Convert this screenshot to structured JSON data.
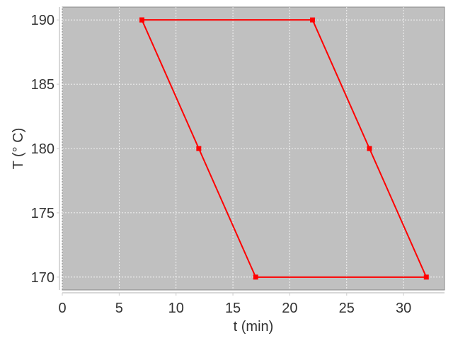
{
  "chart_data": {
    "type": "line",
    "title": "",
    "xlabel": "t (min)",
    "ylabel": "T (° C)",
    "xlim": [
      0,
      33.6
    ],
    "ylim": [
      169,
      191
    ],
    "xticks": [
      0,
      5,
      10,
      15,
      20,
      25,
      30
    ],
    "yticks": [
      170,
      175,
      180,
      185,
      190
    ],
    "grid": true,
    "legend": "none",
    "plot_background": "#c0c0c0",
    "series": [
      {
        "color": "#ff0000",
        "marker": "square",
        "x": [
          7,
          22,
          27,
          32,
          17,
          12,
          7
        ],
        "y": [
          190,
          190,
          180,
          170,
          170,
          180,
          190
        ]
      }
    ]
  }
}
